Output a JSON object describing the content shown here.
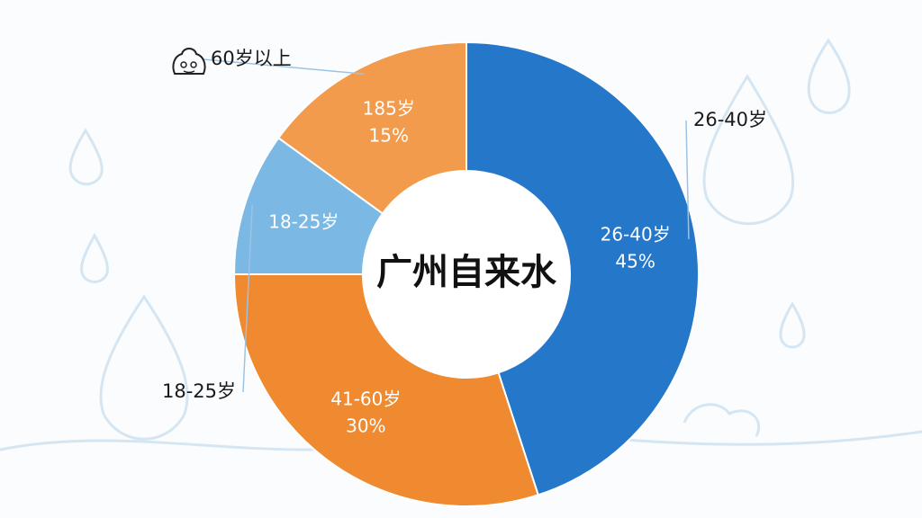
{
  "chart_data": {
    "type": "donut",
    "title": "广州自来水",
    "categories": [
      "26-40岁",
      "41-60岁",
      "18-25岁",
      "185岁"
    ],
    "values": [
      45,
      30,
      10,
      15
    ],
    "value_labels": [
      "45%",
      "30%",
      null,
      "15%"
    ],
    "outer_labels": [
      "26-40岁",
      null,
      "18-25岁",
      "60岁以上"
    ],
    "colors": [
      "#2477c9",
      "#f08a30",
      "#7bb8e4",
      "#f39b4d"
    ]
  }
}
